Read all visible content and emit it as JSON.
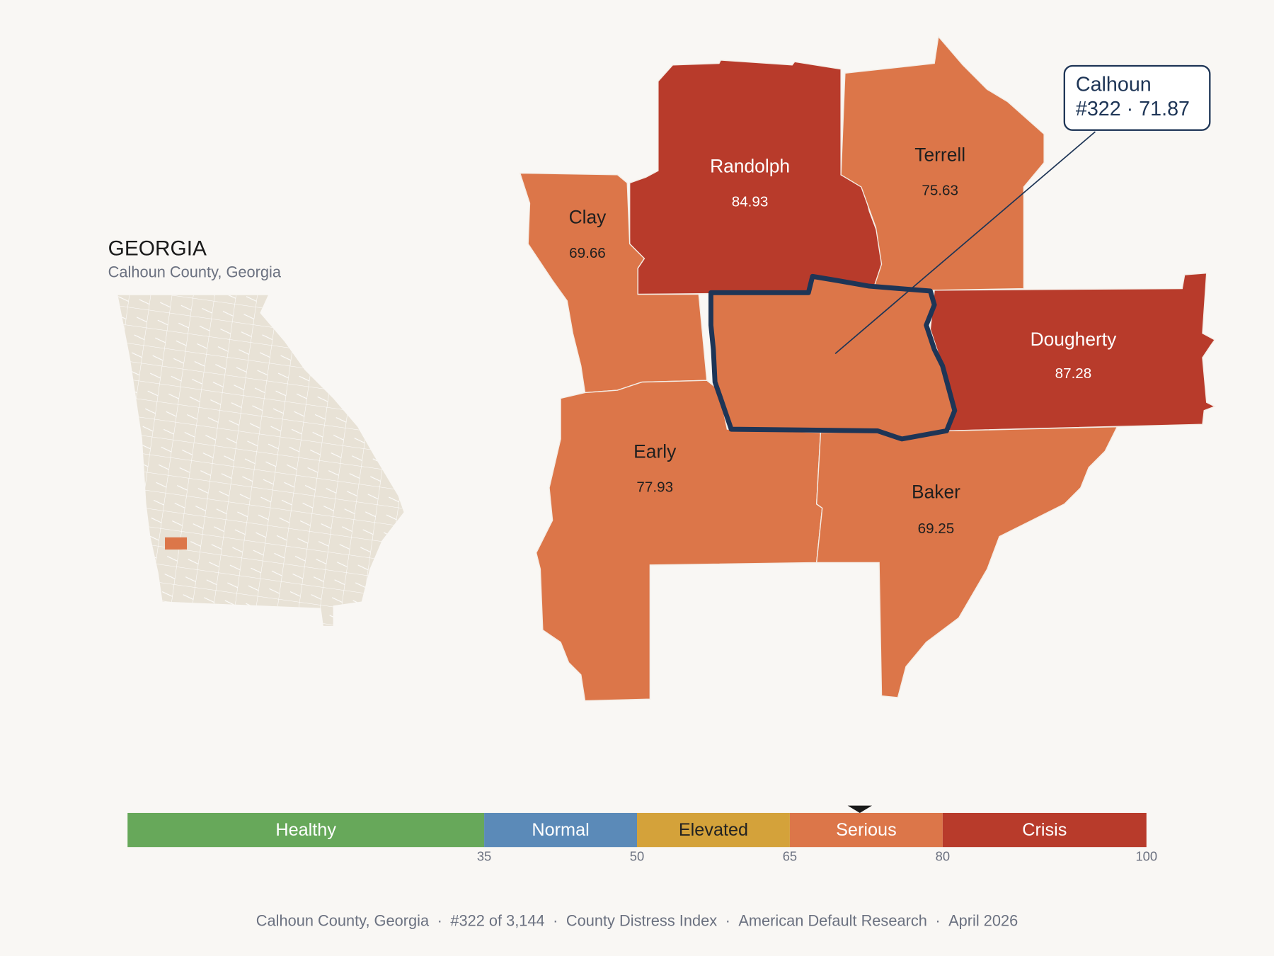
{
  "header": {
    "title": "GEORGIA",
    "subtitle": "Calhoun County, Georgia"
  },
  "counties": [
    {
      "name": "Randolph",
      "value": 84.93
    },
    {
      "name": "Terrell",
      "value": 75.63
    },
    {
      "name": "Clay",
      "value": 69.66
    },
    {
      "name": "Dougherty",
      "value": 87.28
    },
    {
      "name": "Early",
      "value": 77.93
    },
    {
      "name": "Baker",
      "value": 69.25
    }
  ],
  "callout": {
    "name": "Calhoun",
    "label": "#322 · 71.87",
    "value": 71.87
  },
  "scale": {
    "lim": [
      0,
      100
    ],
    "ticks": [
      35,
      50,
      65,
      80,
      100
    ],
    "bands": [
      {
        "label": "Healthy",
        "color": "#67a85a"
      },
      {
        "label": "Normal",
        "color": "#5b8ab8"
      },
      {
        "label": "Elevated",
        "color": "#d4a23a"
      },
      {
        "label": "Serious",
        "color": "#dc7649"
      },
      {
        "label": "Crisis",
        "color": "#b83b2b"
      }
    ]
  },
  "footer": {
    "separator": "·",
    "items": [
      "Calhoun County, Georgia",
      "#322 of 3,144",
      "County Distress Index",
      "American Default Research",
      "April 2026"
    ]
  }
}
